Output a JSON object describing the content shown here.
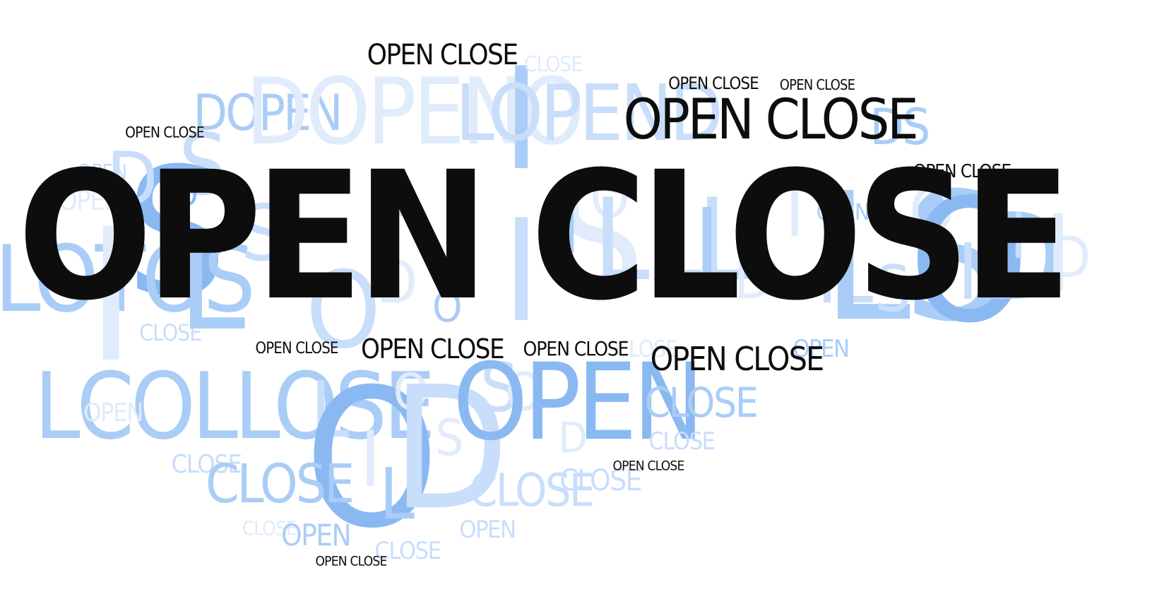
{
  "palette": {
    "black": "#0d0d0d",
    "blue_strong": "#8ab9f1",
    "blue_medium": "#a9cdf6",
    "blue_light": "#c8defa",
    "blue_faint": "#e0ecfb"
  },
  "words": [
    {
      "id": "open-close-main",
      "text": "OPEN CLOSE",
      "color": "black"
    },
    {
      "id": "open-close-upper-right",
      "text": "OPEN CLOSE",
      "color": "black"
    },
    {
      "id": "open-close-top-center",
      "text": "OPEN CLOSE",
      "color": "black"
    },
    {
      "id": "open-close-lower-right",
      "text": "OPEN CLOSE",
      "color": "black"
    },
    {
      "id": "open-close-lower-center",
      "text": "OPEN CLOSE",
      "color": "black"
    },
    {
      "id": "open-close-lower-mid",
      "text": "OPEN CLOSE",
      "color": "black"
    },
    {
      "id": "open-close-lower-left",
      "text": "OPEN CLOSE",
      "color": "black"
    },
    {
      "id": "open-close-top-left",
      "text": "OPEN CLOSE",
      "color": "black"
    },
    {
      "id": "open-close-top-right-small-1",
      "text": "OPEN CLOSE",
      "color": "black"
    },
    {
      "id": "open-close-top-right-small-2",
      "text": "OPEN CLOSE",
      "color": "black"
    },
    {
      "id": "open-close-far-right",
      "text": "OPEN CLOSE",
      "color": "black"
    },
    {
      "id": "open-close-bottom-mid",
      "text": "OPEN CLOSE",
      "color": "black"
    },
    {
      "id": "open-close-bottom-left",
      "text": "OPEN CLOSE",
      "color": "black"
    },
    {
      "id": "s-large-left",
      "text": "S",
      "color": "blue_strong"
    },
    {
      "id": "d-top-left-1",
      "text": "D",
      "color": "blue_light"
    },
    {
      "id": "s-top-left",
      "text": "S",
      "color": "blue_light"
    },
    {
      "id": "d-small-left",
      "text": "D",
      "color": "blue_strong"
    },
    {
      "id": "dopen-top-left",
      "text": "DOPEN",
      "color": "blue_medium"
    },
    {
      "id": "dopeno-top",
      "text": "DOPENO",
      "color": "blue_faint"
    },
    {
      "id": "i-top",
      "text": "I",
      "color": "blue_medium"
    },
    {
      "id": "lopend-top",
      "text": "LOPEND",
      "color": "blue_light"
    },
    {
      "id": "ds-top-right",
      "text": "DS",
      "color": "blue_medium"
    },
    {
      "id": "close-top",
      "text": "CLOSE",
      "color": "blue_faint"
    },
    {
      "id": "open-left-1",
      "text": "OPEN",
      "color": "blue_light"
    },
    {
      "id": "open-left-2",
      "text": "OPEN",
      "color": "blue_faint"
    },
    {
      "id": "slotos-left",
      "text": "SLOTOS",
      "color": "blue_medium"
    },
    {
      "id": "i-left-big",
      "text": "I",
      "color": "blue_faint"
    },
    {
      "id": "close-left-1",
      "text": "CLOSE",
      "color": "blue_light"
    },
    {
      "id": "l-left",
      "text": "L",
      "color": "blue_medium"
    },
    {
      "id": "s-mid-left",
      "text": "S",
      "color": "blue_light"
    },
    {
      "id": "o-mid",
      "text": "O",
      "color": "blue_light"
    },
    {
      "id": "open-mid-small",
      "text": "OPEN",
      "color": "blue_light"
    },
    {
      "id": "d-mid",
      "text": "D",
      "color": "blue_faint"
    },
    {
      "id": "o-small-mid",
      "text": "O",
      "color": "blue_medium"
    },
    {
      "id": "i-center-1",
      "text": "I",
      "color": "blue_light"
    },
    {
      "id": "s-center",
      "text": "S",
      "color": "blue_faint"
    },
    {
      "id": "i-center-2",
      "text": "I",
      "color": "blue_medium"
    },
    {
      "id": "o-center",
      "text": "O",
      "color": "blue_faint"
    },
    {
      "id": "lll-center",
      "text": "LLL",
      "color": "blue_light"
    },
    {
      "id": "i-right-1",
      "text": "I",
      "color": "blue_medium"
    },
    {
      "id": "d-right-mid",
      "text": "D",
      "color": "blue_faint"
    },
    {
      "id": "i-right-2",
      "text": "I",
      "color": "blue_faint"
    },
    {
      "id": "open-right-1",
      "text": "OPEN",
      "color": "blue_medium"
    },
    {
      "id": "il-right",
      "text": "IL",
      "color": "blue_light"
    },
    {
      "id": "ls-right",
      "text": "LS",
      "color": "blue_medium"
    },
    {
      "id": "s-right-small",
      "text": "S",
      "color": "blue_light"
    },
    {
      "id": "o-right",
      "text": "O",
      "color": "blue_faint"
    },
    {
      "id": "o-right-big",
      "text": "O",
      "color": "blue_strong"
    },
    {
      "id": "i-right-3",
      "text": "I",
      "color": "blue_light"
    },
    {
      "id": "d-far-right",
      "text": "D",
      "color": "blue_medium"
    },
    {
      "id": "i-far-right-1",
      "text": "I",
      "color": "blue_light"
    },
    {
      "id": "i-far-right-2",
      "text": "I",
      "color": "blue_faint"
    },
    {
      "id": "d-far-right-2",
      "text": "D",
      "color": "blue_faint"
    },
    {
      "id": "close-right-faint",
      "text": "CLOSE",
      "color": "blue_faint"
    },
    {
      "id": "open-right-2",
      "text": "OPEN",
      "color": "blue_medium"
    },
    {
      "id": "lcollose-left",
      "text": "LCOLLOSE",
      "color": "blue_medium"
    },
    {
      "id": "open-left-bottom",
      "text": "OPEN",
      "color": "blue_faint"
    },
    {
      "id": "l-mid-bottom",
      "text": "L",
      "color": "blue_light"
    },
    {
      "id": "o-bottom-big",
      "text": "O",
      "color": "blue_strong"
    },
    {
      "id": "i-bottom",
      "text": "I",
      "color": "blue_faint"
    },
    {
      "id": "l-bottom",
      "text": "L",
      "color": "blue_medium"
    },
    {
      "id": "o-bottom-2",
      "text": "O",
      "color": "blue_faint"
    },
    {
      "id": "d-bottom",
      "text": "D",
      "color": "blue_light"
    },
    {
      "id": "s-bottom",
      "text": "S",
      "color": "blue_faint"
    },
    {
      "id": "s-bottom-2",
      "text": "S",
      "color": "blue_light"
    },
    {
      "id": "o-bottom-3",
      "text": "O",
      "color": "blue_faint"
    },
    {
      "id": "open-bottom-big",
      "text": "OPEN",
      "color": "blue_strong"
    },
    {
      "id": "d-bottom-2",
      "text": "D",
      "color": "blue_faint"
    },
    {
      "id": "close-right-bottom",
      "text": "CLOSE",
      "color": "blue_medium"
    },
    {
      "id": "close-right-bottom-2",
      "text": "CLOSE",
      "color": "blue_light"
    },
    {
      "id": "close-bottom-left-1",
      "text": "CLOSE",
      "color": "blue_light"
    },
    {
      "id": "close-bottom-left-2",
      "text": "CLOSE",
      "color": "blue_medium"
    },
    {
      "id": "close-bottom-left-3",
      "text": "CLOSE",
      "color": "blue_faint"
    },
    {
      "id": "open-bottom-left",
      "text": "OPEN",
      "color": "blue_medium"
    },
    {
      "id": "close-bottom-center",
      "text": "CLOSE",
      "color": "blue_light"
    },
    {
      "id": "close-bottom-right",
      "text": "CLOSE",
      "color": "blue_light"
    },
    {
      "id": "open-bottom-center",
      "text": "OPEN",
      "color": "blue_light"
    },
    {
      "id": "close-bottom-small",
      "text": "CLOSE",
      "color": "blue_light"
    }
  ]
}
